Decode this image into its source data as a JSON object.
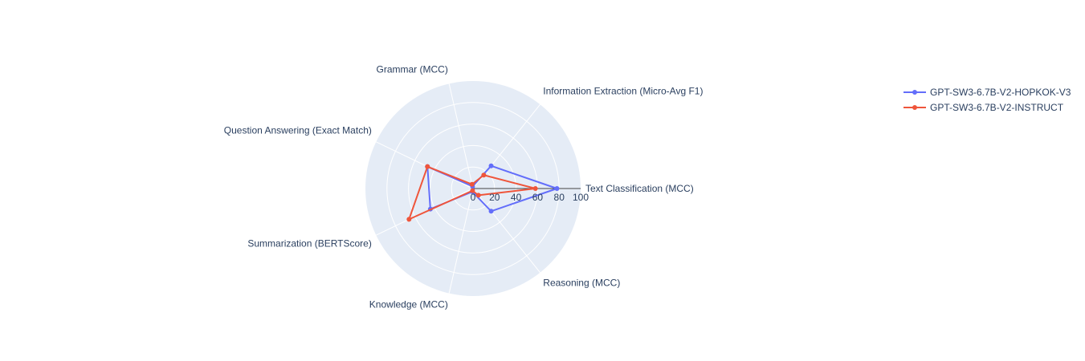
{
  "chart_data": {
    "type": "radar",
    "axes": [
      "Text Classification (MCC)",
      "Information Extraction (Micro-Avg F1)",
      "Grammar (MCC)",
      "Question Answering (Exact Match)",
      "Summarization (BERTScore)",
      "Knowledge (MCC)",
      "Reasoning (MCC)"
    ],
    "radial_range": [
      0,
      100
    ],
    "radial_ticks": [
      0,
      20,
      40,
      60,
      80,
      100
    ],
    "series": [
      {
        "name": "GPT-SW3-6.7B-V2-HOPKOK-V3",
        "color": "#636efa",
        "values": [
          78,
          27,
          2,
          47,
          44,
          3,
          27
        ]
      },
      {
        "name": "GPT-SW3-6.7B-V2-INSTRUCT",
        "color": "#ef553b",
        "values": [
          58,
          16,
          4,
          47,
          66,
          2,
          8
        ]
      }
    ],
    "legend_position": "top-right",
    "background_color": "#e5ecf6",
    "grid_color": "#ffffff",
    "axis_line_color": "#444444"
  }
}
